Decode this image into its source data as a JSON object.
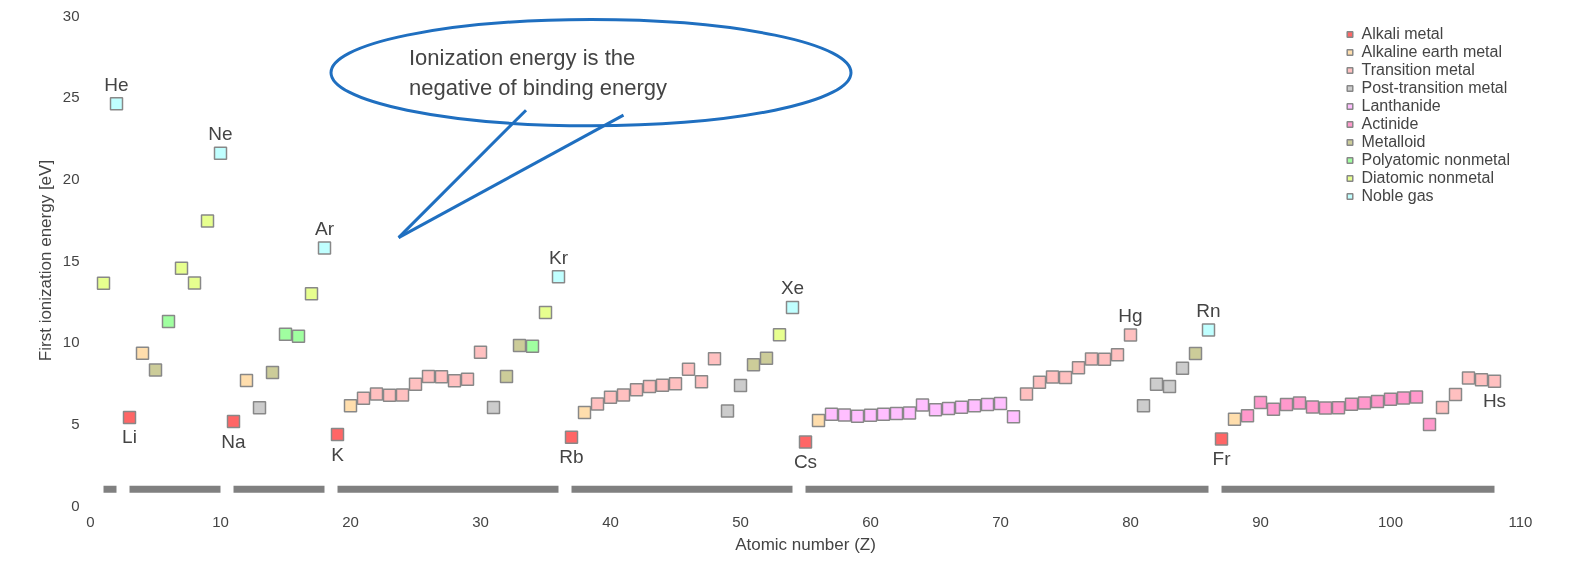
{
  "chart_data": {
    "type": "scatter",
    "xlabel": "Atomic number (Z)",
    "ylabel": "First ionization energy [eV]",
    "xlim": [
      0,
      110
    ],
    "ylim": [
      0,
      30
    ],
    "xticks": [
      0,
      10,
      20,
      30,
      40,
      50,
      60,
      70,
      80,
      90,
      100,
      110
    ],
    "yticks": [
      0,
      5,
      10,
      15,
      20,
      25,
      30
    ],
    "grid": false,
    "legend": "top right",
    "marker": "square",
    "series": [
      {
        "name": "Alkali metal",
        "color": "#ff6666",
        "x": [
          3,
          11,
          19,
          37,
          55,
          87
        ],
        "values": [
          5.39,
          5.14,
          4.34,
          4.18,
          3.89,
          4.07
        ]
      },
      {
        "name": "Alkaline earth metal",
        "color": "#ffdead",
        "x": [
          4,
          12,
          20,
          38,
          56,
          88
        ],
        "values": [
          9.32,
          7.65,
          6.11,
          5.69,
          5.21,
          5.28
        ]
      },
      {
        "name": "Transition metal",
        "color": "#ffc0c0",
        "x": [
          21,
          22,
          23,
          24,
          25,
          26,
          27,
          28,
          29,
          30,
          39,
          40,
          41,
          42,
          43,
          44,
          45,
          46,
          47,
          48,
          72,
          73,
          74,
          75,
          76,
          77,
          78,
          79,
          80,
          104,
          105,
          106,
          107,
          108
        ],
        "values": [
          6.56,
          6.83,
          6.75,
          6.77,
          7.43,
          7.9,
          7.88,
          7.64,
          7.73,
          9.39,
          6.22,
          6.63,
          6.76,
          7.09,
          7.28,
          7.36,
          7.46,
          8.34,
          7.58,
          8.99,
          6.83,
          7.55,
          7.86,
          7.83,
          8.44,
          8.97,
          8.96,
          9.23,
          10.44,
          6.0,
          6.8,
          7.8,
          7.7,
          7.6
        ]
      },
      {
        "name": "Post-transition metal",
        "color": "#cccccc",
        "x": [
          13,
          31,
          49,
          50,
          81,
          82,
          83,
          84
        ],
        "values": [
          5.99,
          6.0,
          5.79,
          7.34,
          6.11,
          7.42,
          7.29,
          8.41
        ]
      },
      {
        "name": "Lanthanide",
        "color": "#ffbfff",
        "x": [
          57,
          58,
          59,
          60,
          61,
          62,
          63,
          64,
          65,
          66,
          67,
          68,
          69,
          70,
          71
        ],
        "values": [
          5.58,
          5.54,
          5.47,
          5.53,
          5.58,
          5.64,
          5.67,
          6.15,
          5.86,
          5.94,
          6.02,
          6.11,
          6.18,
          6.25,
          5.43
        ]
      },
      {
        "name": "Actinide",
        "color": "#ff99cc",
        "x": [
          89,
          90,
          91,
          92,
          93,
          94,
          95,
          96,
          97,
          98,
          99,
          100,
          101,
          102,
          103
        ],
        "values": [
          5.5,
          6.31,
          5.89,
          6.19,
          6.27,
          6.03,
          5.97,
          5.99,
          6.2,
          6.28,
          6.37,
          6.5,
          6.58,
          6.65,
          4.96
        ]
      },
      {
        "name": "Metalloid",
        "color": "#cccc99",
        "x": [
          5,
          14,
          32,
          33,
          51,
          52,
          85
        ],
        "values": [
          8.3,
          8.15,
          7.9,
          9.79,
          8.61,
          9.01,
          9.3
        ]
      },
      {
        "name": "Polyatomic nonmetal",
        "color": "#a0ffa0",
        "x": [
          6,
          15,
          16,
          34
        ],
        "values": [
          11.26,
          10.49,
          10.36,
          9.75
        ]
      },
      {
        "name": "Diatomic nonmetal",
        "color": "#e7ff8f",
        "x": [
          1,
          7,
          8,
          9,
          17,
          35,
          53
        ],
        "values": [
          13.6,
          14.53,
          13.62,
          17.42,
          12.97,
          11.81,
          10.45
        ]
      },
      {
        "name": "Noble gas",
        "color": "#c0ffff",
        "x": [
          2,
          10,
          18,
          36,
          54,
          86
        ],
        "values": [
          24.59,
          21.56,
          15.76,
          14.0,
          12.13,
          10.75
        ]
      },
      {
        "type": "line",
        "marker": "none",
        "color": "#808080",
        "x": [
          1,
          2,
          2.5,
          3,
          10,
          10.5,
          11,
          18,
          18.5,
          19,
          36,
          36.5,
          37,
          54,
          54.5,
          55,
          86,
          86.5,
          87,
          108
        ],
        "values": [
          1,
          1,
          null,
          1,
          1,
          null,
          1,
          1,
          null,
          1,
          1,
          null,
          1,
          1,
          null,
          1,
          1,
          null,
          1,
          1
        ]
      }
    ],
    "annotations": [
      "Ionization energy is the negative of binding energy",
      {
        "text": "He",
        "x": 2,
        "y": 24.59
      },
      {
        "text": "Ne",
        "x": 10,
        "y": 21.56
      },
      {
        "text": "Ar",
        "x": 18,
        "y": 15.76
      },
      {
        "text": "Kr",
        "x": 36,
        "y": 14.0
      },
      {
        "text": "Xe",
        "x": 54,
        "y": 12.13
      },
      {
        "text": "Hg",
        "x": 80,
        "y": 10.44
      },
      {
        "text": "Rn",
        "x": 86,
        "y": 10.75
      },
      {
        "text": "Li",
        "x": 3,
        "y": 5.39
      },
      {
        "text": "Na",
        "x": 11,
        "y": 5.14
      },
      {
        "text": "K",
        "x": 19,
        "y": 4.34
      },
      {
        "text": "Rb",
        "x": 37,
        "y": 4.18
      },
      {
        "text": "Cs",
        "x": 55,
        "y": 3.89
      },
      {
        "text": "Fr",
        "x": 87,
        "y": 4.07
      },
      {
        "text": "Hs",
        "x": 108,
        "y": 7.6
      }
    ]
  }
}
